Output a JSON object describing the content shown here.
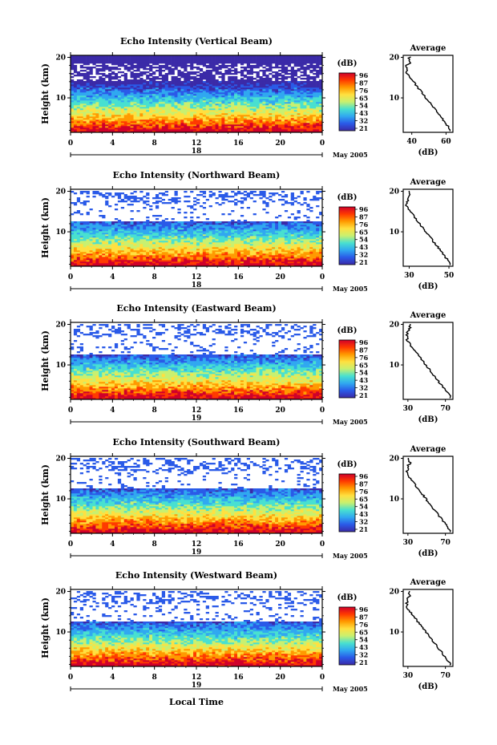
{
  "figure": {
    "xlabel": "Local Time",
    "colorbar_unit": "(dB)",
    "colorbar_ticks": [
      "96",
      "87",
      "76",
      "65",
      "54",
      "43",
      "32",
      "21"
    ],
    "colorbar_colors": [
      "#d0002a",
      "#ff3a00",
      "#ff9a00",
      "#ffe040",
      "#c8f070",
      "#48e0d0",
      "#30a8f0",
      "#2a5ae8",
      "#3b2aa8"
    ],
    "profile_title": "Average",
    "profile_xlabel": "(dB)",
    "date_label": "May 2005",
    "x_ticks": [
      "0",
      "4",
      "8",
      "12",
      "16",
      "20",
      "0"
    ],
    "y_ticks": [
      "20",
      "10"
    ]
  },
  "chart_data": [
    {
      "type": "heatmap",
      "title": "Echo Intensity (Vertical Beam)",
      "ylabel": "Height (km)",
      "xlim": [
        0,
        24
      ],
      "ylim": [
        1.5,
        20.5
      ],
      "day_label": "18",
      "profile_xticks": [
        "40",
        "60"
      ],
      "profile_xlim": [
        35,
        64
      ]
    },
    {
      "type": "heatmap",
      "title": "Echo Intensity (Northward Beam)",
      "ylabel": "Height (km)",
      "xlim": [
        0,
        24
      ],
      "ylim": [
        1.5,
        20.5
      ],
      "day_label": "18",
      "profile_xticks": [
        "30",
        "50"
      ],
      "profile_xlim": [
        27,
        52
      ]
    },
    {
      "type": "heatmap",
      "title": "Echo Intensity (Eastward Beam)",
      "ylabel": "Height (km)",
      "xlim": [
        0,
        24
      ],
      "ylim": [
        1.5,
        20.5
      ],
      "day_label": "19",
      "profile_xticks": [
        "30",
        "70"
      ],
      "profile_xlim": [
        25,
        78
      ]
    },
    {
      "type": "heatmap",
      "title": "Echo Intensity (Southward Beam)",
      "ylabel": "Height (km)",
      "xlim": [
        0,
        24
      ],
      "ylim": [
        1.5,
        20.5
      ],
      "day_label": "19",
      "profile_xticks": [
        "30",
        "70"
      ],
      "profile_xlim": [
        25,
        78
      ]
    },
    {
      "type": "heatmap",
      "title": "Echo Intensity (Westward Beam)",
      "ylabel": "Height (km)",
      "xlim": [
        0,
        24
      ],
      "ylim": [
        1.5,
        20.5
      ],
      "day_label": "19",
      "profile_xticks": [
        "30",
        "70"
      ],
      "profile_xlim": [
        25,
        78
      ]
    }
  ]
}
